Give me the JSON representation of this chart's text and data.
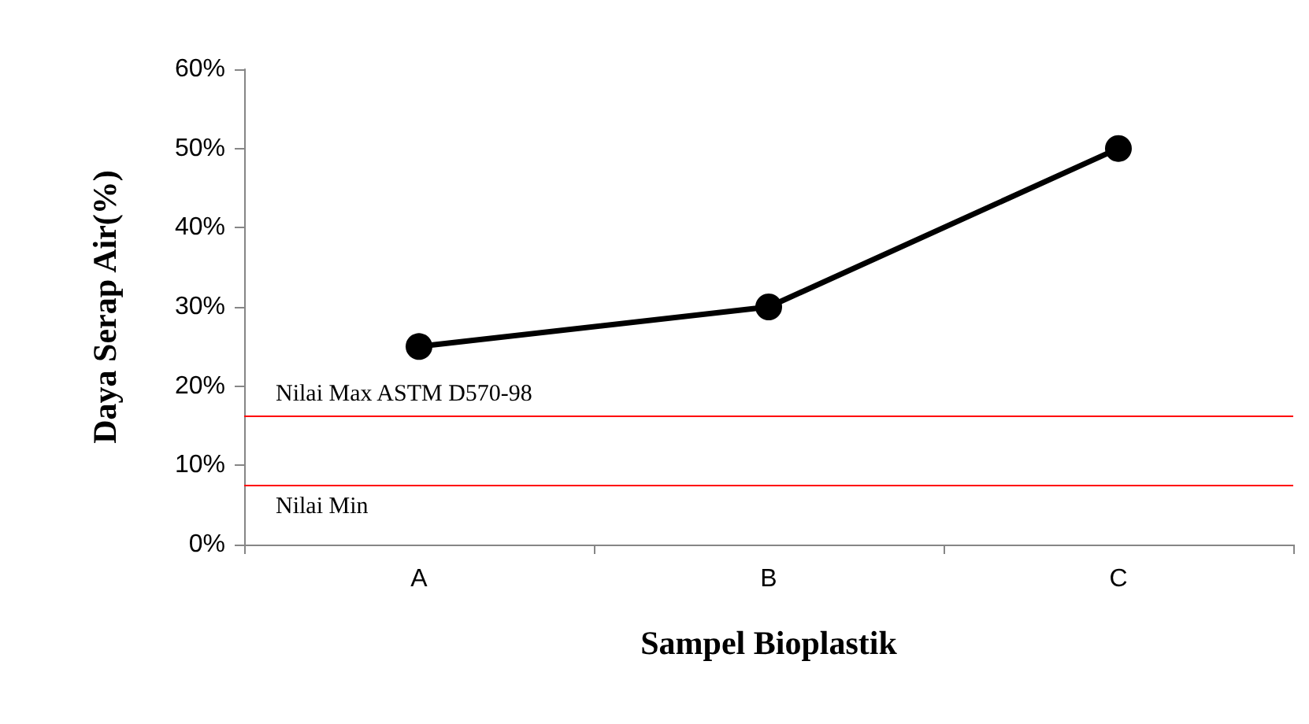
{
  "chart_data": {
    "type": "line",
    "xlabel": "Sampel Bioplastik",
    "ylabel": "Daya Serap Air(%)",
    "categories": [
      "A",
      "B",
      "C"
    ],
    "series": [
      {
        "color": "#000000",
        "values": [
          25,
          30,
          50
        ]
      }
    ],
    "ylim": [
      0,
      60
    ],
    "yticks": [
      {
        "value": 0,
        "label": "0%"
      },
      {
        "value": 10,
        "label": "10%"
      },
      {
        "value": 20,
        "label": "20%"
      },
      {
        "value": 30,
        "label": "30%"
      },
      {
        "value": 40,
        "label": "40%"
      },
      {
        "value": 50,
        "label": "50%"
      },
      {
        "value": 60,
        "label": "60%"
      }
    ],
    "ref_lines": [
      {
        "axis": "y",
        "value": 16.3,
        "label": "Nilai Max ASTM D570-98",
        "color": "#ff0000"
      },
      {
        "axis": "y",
        "value": 7.5,
        "label": "Nilai Min",
        "color": "#ff0000"
      }
    ],
    "grid": false,
    "marker": "circle",
    "line_style": "solid"
  }
}
